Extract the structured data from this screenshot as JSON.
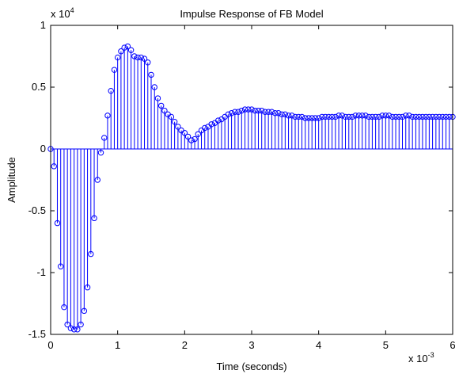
{
  "chart_data": {
    "type": "stem",
    "title": "Impulse Response of FB Model",
    "xlabel": "Time (seconds)",
    "ylabel": "Amplitude",
    "x_multiplier": {
      "base": "x 10",
      "exponent": "-3"
    },
    "y_multiplier": {
      "base": "x 10",
      "exponent": "4"
    },
    "color": "#0000ff",
    "xlim": [
      0,
      6
    ],
    "xticks": [
      0,
      1,
      2,
      3,
      4,
      5,
      6
    ],
    "ylim": [
      -1.5,
      1
    ],
    "yticks": [
      -1.5,
      -1,
      -0.5,
      0,
      0.5,
      1
    ],
    "x": [
      0,
      0.05,
      0.1,
      0.15,
      0.2,
      0.25,
      0.3,
      0.35,
      0.4,
      0.45,
      0.5,
      0.55,
      0.6,
      0.65,
      0.7,
      0.75,
      0.8,
      0.85,
      0.9,
      0.95,
      1,
      1.05,
      1.1,
      1.15,
      1.2,
      1.25,
      1.3,
      1.35,
      1.4,
      1.45,
      1.5,
      1.55,
      1.6,
      1.65,
      1.7,
      1.75,
      1.8,
      1.85,
      1.9,
      1.95,
      2,
      2.05,
      2.1,
      2.15,
      2.2,
      2.25,
      2.3,
      2.35,
      2.4,
      2.45,
      2.5,
      2.55,
      2.6,
      2.65,
      2.7,
      2.75,
      2.8,
      2.85,
      2.9,
      2.95,
      3,
      3.05,
      3.1,
      3.15,
      3.2,
      3.25,
      3.3,
      3.35,
      3.4,
      3.45,
      3.5,
      3.55,
      3.6,
      3.65,
      3.7,
      3.75,
      3.8,
      3.85,
      3.9,
      3.95,
      4,
      4.05,
      4.1,
      4.15,
      4.2,
      4.25,
      4.3,
      4.35,
      4.4,
      4.45,
      4.5,
      4.55,
      4.6,
      4.65,
      4.7,
      4.75,
      4.8,
      4.85,
      4.9,
      4.95,
      5,
      5.05,
      5.1,
      5.15,
      5.2,
      5.25,
      5.3,
      5.35,
      5.4,
      5.45,
      5.5,
      5.55,
      5.6,
      5.65,
      5.7,
      5.75,
      5.8,
      5.85,
      5.9,
      5.95,
      6
    ],
    "values": [
      0,
      -0.14,
      -0.6,
      -0.95,
      -1.28,
      -1.42,
      -1.45,
      -1.46,
      -1.46,
      -1.42,
      -1.31,
      -1.12,
      -0.85,
      -0.56,
      -0.25,
      -0.03,
      0.09,
      0.27,
      0.47,
      0.64,
      0.74,
      0.79,
      0.82,
      0.83,
      0.8,
      0.75,
      0.74,
      0.74,
      0.73,
      0.7,
      0.6,
      0.5,
      0.41,
      0.35,
      0.31,
      0.28,
      0.26,
      0.22,
      0.18,
      0.15,
      0.13,
      0.1,
      0.07,
      0.08,
      0.12,
      0.15,
      0.17,
      0.18,
      0.2,
      0.21,
      0.23,
      0.24,
      0.26,
      0.28,
      0.29,
      0.3,
      0.3,
      0.31,
      0.32,
      0.32,
      0.32,
      0.31,
      0.31,
      0.31,
      0.3,
      0.3,
      0.3,
      0.29,
      0.29,
      0.28,
      0.28,
      0.27,
      0.27,
      0.26,
      0.26,
      0.26,
      0.25,
      0.25,
      0.25,
      0.25,
      0.25,
      0.26,
      0.26,
      0.26,
      0.26,
      0.26,
      0.27,
      0.27,
      0.26,
      0.26,
      0.26,
      0.27,
      0.27,
      0.27,
      0.27,
      0.26,
      0.26,
      0.26,
      0.26,
      0.27,
      0.27,
      0.27,
      0.26,
      0.26,
      0.26,
      0.26,
      0.27,
      0.27,
      0.26,
      0.26,
      0.26,
      0.26,
      0.26,
      0.26,
      0.26,
      0.26,
      0.26,
      0.26,
      0.26,
      0.26,
      0.26
    ]
  }
}
